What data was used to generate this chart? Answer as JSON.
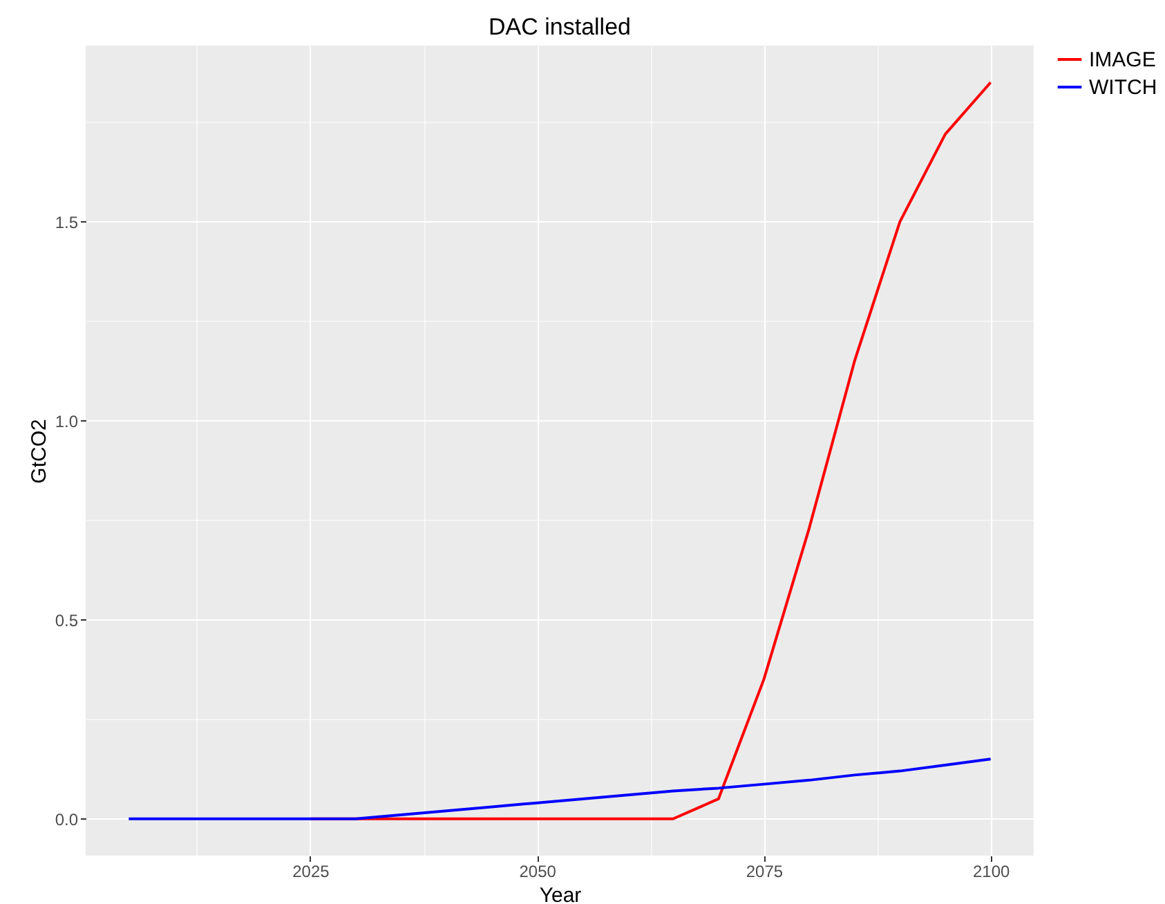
{
  "chart_data": {
    "type": "line",
    "title": "DAC installed",
    "xlabel": "Year",
    "ylabel": "GtCO2",
    "x": [
      2005,
      2010,
      2015,
      2020,
      2025,
      2030,
      2035,
      2040,
      2045,
      2050,
      2055,
      2060,
      2065,
      2070,
      2075,
      2080,
      2085,
      2090,
      2095,
      2100
    ],
    "series": [
      {
        "name": "IMAGE",
        "color": "#ff0000",
        "values": [
          null,
          null,
          null,
          null,
          0,
          0,
          0,
          0,
          0,
          0,
          0,
          0,
          0,
          0.05,
          0.35,
          0.73,
          1.15,
          1.5,
          1.72,
          1.85
        ]
      },
      {
        "name": "WITCH",
        "color": "#0000ff",
        "values": [
          0,
          0,
          0,
          0,
          0,
          0,
          0.01,
          0.02,
          0.03,
          0.04,
          0.05,
          0.06,
          0.07,
          0.077,
          0.087,
          0.097,
          0.11,
          0.12,
          0.135,
          0.15
        ]
      }
    ],
    "xlim": [
      2000.25,
      2104.75
    ],
    "xticks": [
      {
        "value": 2012.5,
        "label": null
      },
      2025,
      {
        "value": 2037.5,
        "label": null
      },
      2050,
      {
        "value": 2062.5,
        "label": null
      },
      2075,
      {
        "value": 2087.5,
        "label": null
      },
      2100
    ],
    "ylim": [
      -0.0925,
      1.9425
    ],
    "yticks": [
      {
        "value": 0,
        "label": "0.0"
      },
      {
        "value": 0.25,
        "label": null
      },
      {
        "value": 0.5,
        "label": "0.5"
      },
      {
        "value": 0.75,
        "label": null
      },
      {
        "value": 1,
        "label": "1.0"
      },
      {
        "value": 1.25,
        "label": null
      },
      {
        "value": 1.5,
        "label": "1.5"
      },
      {
        "value": 1.75,
        "label": null
      }
    ],
    "grid": true,
    "legend": "right",
    "marker": "none",
    "line_style": "solid"
  }
}
